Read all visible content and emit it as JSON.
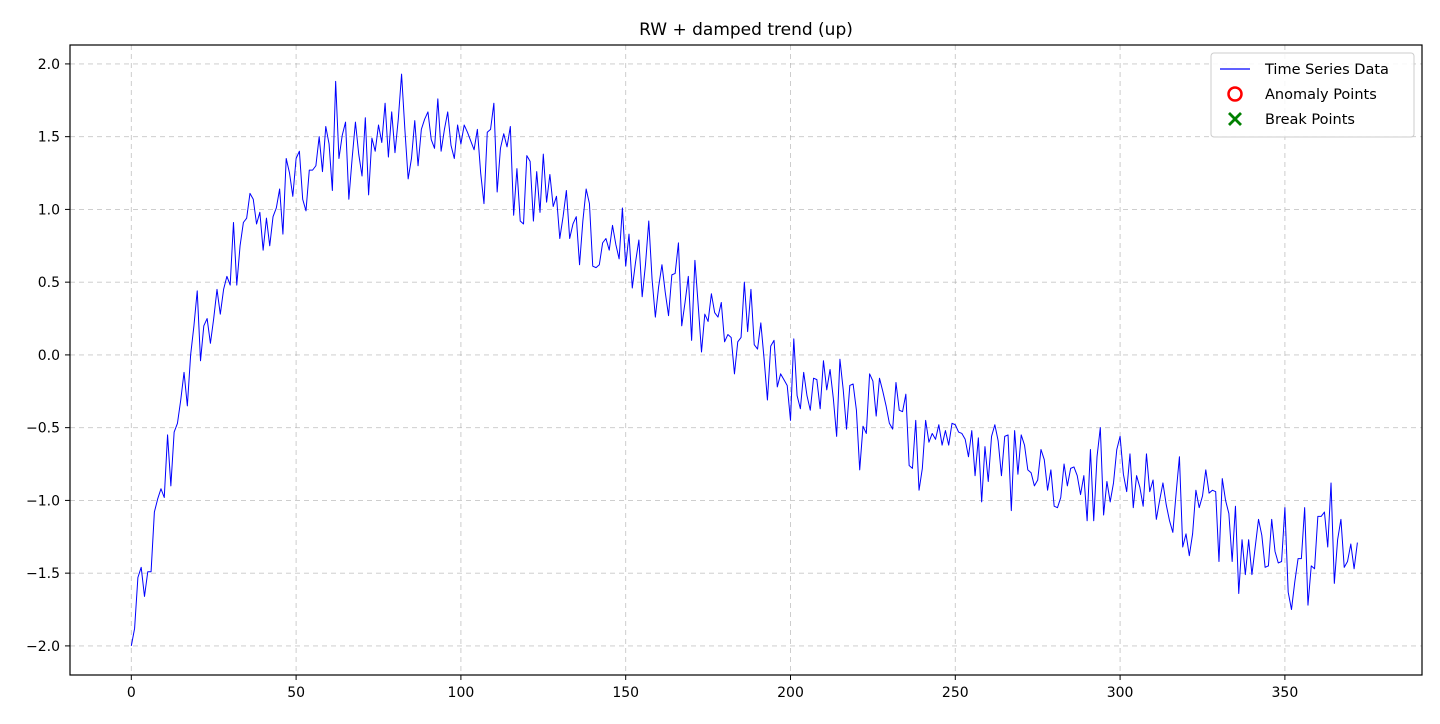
{
  "chart_data": {
    "type": "line",
    "title": "RW + damped trend (up)",
    "xlabel": "",
    "ylabel": "",
    "xlim": [
      -18.6,
      391.6
    ],
    "ylim": [
      -2.2,
      2.13
    ],
    "x_ticks": [
      0,
      50,
      100,
      150,
      200,
      250,
      300,
      350
    ],
    "y_ticks": [
      -2.0,
      -1.5,
      -1.0,
      -0.5,
      0.0,
      0.5,
      1.0,
      1.5,
      2.0
    ],
    "x_tick_labels": [
      "0",
      "50",
      "100",
      "150",
      "200",
      "250",
      "300",
      "350"
    ],
    "y_tick_labels": [
      "−2.0",
      "−1.5",
      "−1.0",
      "−0.5",
      "0.0",
      "0.5",
      "1.0",
      "1.5",
      "2.0"
    ],
    "grid": true,
    "legend_position": "top-right",
    "legend": [
      {
        "label": "Time Series Data",
        "marker": "line",
        "color": "#0000ff"
      },
      {
        "label": "Anomaly Points",
        "marker": "circle",
        "color": "#ff0000"
      },
      {
        "label": "Break Points",
        "marker": "x",
        "color": "#008000"
      }
    ],
    "series": [
      {
        "name": "Time Series Data",
        "color": "#0000ff",
        "x_start": 0,
        "x_step": 1,
        "values": [
          -2.0,
          -1.88,
          -1.53,
          -1.46,
          -1.66,
          -1.49,
          -1.49,
          -1.08,
          -0.99,
          -0.92,
          -0.98,
          -0.55,
          -0.9,
          -0.53,
          -0.47,
          -0.31,
          -0.12,
          -0.35,
          0.0,
          0.2,
          0.44,
          -0.04,
          0.2,
          0.25,
          0.08,
          0.25,
          0.45,
          0.28,
          0.45,
          0.54,
          0.48,
          0.91,
          0.48,
          0.75,
          0.91,
          0.94,
          1.11,
          1.07,
          0.9,
          0.98,
          0.72,
          0.94,
          0.75,
          0.95,
          1.01,
          1.14,
          0.83,
          1.35,
          1.25,
          1.09,
          1.35,
          1.4,
          1.07,
          0.99,
          1.27,
          1.27,
          1.3,
          1.5,
          1.26,
          1.57,
          1.45,
          1.13,
          1.88,
          1.35,
          1.51,
          1.6,
          1.07,
          1.35,
          1.6,
          1.38,
          1.23,
          1.63,
          1.1,
          1.49,
          1.4,
          1.58,
          1.46,
          1.73,
          1.36,
          1.67,
          1.39,
          1.62,
          1.93,
          1.55,
          1.21,
          1.35,
          1.61,
          1.3,
          1.55,
          1.62,
          1.67,
          1.48,
          1.42,
          1.76,
          1.4,
          1.55,
          1.67,
          1.44,
          1.35,
          1.58,
          1.45,
          1.58,
          1.53,
          1.47,
          1.41,
          1.55,
          1.25,
          1.04,
          1.53,
          1.55,
          1.73,
          1.12,
          1.42,
          1.52,
          1.43,
          1.57,
          0.96,
          1.28,
          0.92,
          0.9,
          1.37,
          1.33,
          0.92,
          1.26,
          0.98,
          1.38,
          1.05,
          1.24,
          1.02,
          1.09,
          0.8,
          0.95,
          1.13,
          0.8,
          0.9,
          0.95,
          0.62,
          0.92,
          1.14,
          1.04,
          0.61,
          0.6,
          0.62,
          0.77,
          0.8,
          0.72,
          0.89,
          0.76,
          0.66,
          1.01,
          0.61,
          0.83,
          0.46,
          0.64,
          0.79,
          0.4,
          0.62,
          0.92,
          0.52,
          0.26,
          0.47,
          0.62,
          0.43,
          0.27,
          0.55,
          0.56,
          0.77,
          0.2,
          0.36,
          0.54,
          0.1,
          0.65,
          0.34,
          0.02,
          0.28,
          0.23,
          0.42,
          0.29,
          0.26,
          0.36,
          0.09,
          0.14,
          0.12,
          -0.13,
          0.09,
          0.12,
          0.5,
          0.16,
          0.45,
          0.07,
          0.04,
          0.22,
          -0.03,
          -0.31,
          0.06,
          0.1,
          -0.22,
          -0.13,
          -0.17,
          -0.21,
          -0.45,
          0.11,
          -0.28,
          -0.37,
          -0.12,
          -0.28,
          -0.38,
          -0.16,
          -0.17,
          -0.37,
          -0.04,
          -0.24,
          -0.1,
          -0.3,
          -0.56,
          -0.03,
          -0.24,
          -0.51,
          -0.21,
          -0.2,
          -0.38,
          -0.79,
          -0.49,
          -0.54,
          -0.13,
          -0.18,
          -0.42,
          -0.16,
          -0.25,
          -0.35,
          -0.47,
          -0.51,
          -0.19,
          -0.38,
          -0.39,
          -0.27,
          -0.76,
          -0.78,
          -0.45,
          -0.93,
          -0.78,
          -0.45,
          -0.6,
          -0.54,
          -0.58,
          -0.48,
          -0.62,
          -0.52,
          -0.62,
          -0.47,
          -0.48,
          -0.53,
          -0.54,
          -0.58,
          -0.7,
          -0.52,
          -0.83,
          -0.57,
          -1.01,
          -0.63,
          -0.87,
          -0.56,
          -0.48,
          -0.59,
          -0.83,
          -0.56,
          -0.55,
          -1.07,
          -0.52,
          -0.82,
          -0.55,
          -0.62,
          -0.79,
          -0.81,
          -0.9,
          -0.86,
          -0.65,
          -0.72,
          -0.93,
          -0.79,
          -1.04,
          -1.05,
          -0.98,
          -0.75,
          -0.9,
          -0.78,
          -0.77,
          -0.83,
          -0.96,
          -0.83,
          -1.14,
          -0.65,
          -1.14,
          -0.7,
          -0.5,
          -1.1,
          -0.87,
          -1.01,
          -0.88,
          -0.65,
          -0.56,
          -0.82,
          -0.94,
          -0.68,
          -1.05,
          -0.83,
          -0.91,
          -1.04,
          -0.68,
          -0.94,
          -0.86,
          -1.13,
          -1.0,
          -0.88,
          -1.03,
          -1.14,
          -1.22,
          -0.95,
          -0.7,
          -1.32,
          -1.23,
          -1.38,
          -1.23,
          -0.93,
          -1.05,
          -0.97,
          -0.79,
          -0.95,
          -0.93,
          -0.94,
          -1.42,
          -0.85,
          -1.0,
          -1.09,
          -1.42,
          -1.04,
          -1.64,
          -1.27,
          -1.51,
          -1.27,
          -1.51,
          -1.32,
          -1.13,
          -1.24,
          -1.46,
          -1.45,
          -1.13,
          -1.35,
          -1.43,
          -1.42,
          -1.05,
          -1.63,
          -1.75,
          -1.56,
          -1.4,
          -1.4,
          -1.05,
          -1.72,
          -1.45,
          -1.47,
          -1.11,
          -1.11,
          -1.08,
          -1.32,
          -0.88,
          -1.57,
          -1.27,
          -1.13,
          -1.46,
          -1.42,
          -1.3,
          -1.47,
          -1.29
        ]
      }
    ],
    "anomaly_points": [],
    "break_points": []
  }
}
